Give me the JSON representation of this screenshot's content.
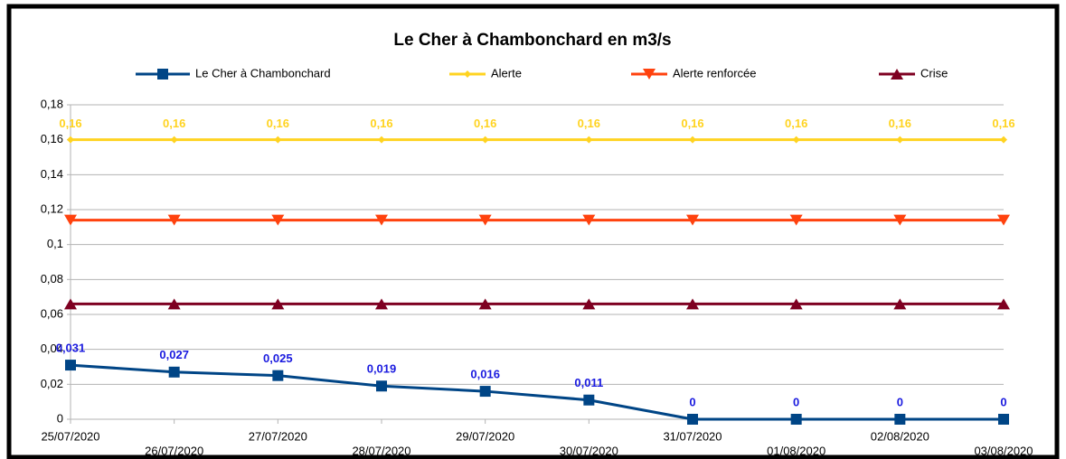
{
  "chart_data": {
    "type": "line",
    "title": "Le Cher à Chambonchard en m3/s",
    "categories": [
      "25/07/2020",
      "26/07/2020",
      "27/07/2020",
      "28/07/2020",
      "29/07/2020",
      "30/07/2020",
      "31/07/2020",
      "01/08/2020",
      "02/08/2020",
      "03/08/2020"
    ],
    "series": [
      {
        "name": "Le Cher à Chambonchard",
        "color": "#004586",
        "marker": "square",
        "values": [
          0.031,
          0.027,
          0.025,
          0.019,
          0.016,
          0.011,
          0,
          0,
          0,
          0
        ],
        "value_labels": [
          "0,031",
          "0,027",
          "0,025",
          "0,019",
          "0,016",
          "0,011",
          "0",
          "0",
          "0",
          "0"
        ]
      },
      {
        "name": "Alerte",
        "color": "#ffd320",
        "marker": "diamond",
        "values": [
          0.16,
          0.16,
          0.16,
          0.16,
          0.16,
          0.16,
          0.16,
          0.16,
          0.16,
          0.16
        ],
        "value_labels": [
          "0,16",
          "0,16",
          "0,16",
          "0,16",
          "0,16",
          "0,16",
          "0,16",
          "0,16",
          "0,16",
          "0,16"
        ]
      },
      {
        "name": "Alerte renforcée",
        "color": "#ff420e",
        "marker": "triangle-down",
        "values": [
          0.114,
          0.114,
          0.114,
          0.114,
          0.114,
          0.114,
          0.114,
          0.114,
          0.114,
          0.114
        ]
      },
      {
        "name": "Crise",
        "color": "#7e0021",
        "marker": "triangle-up",
        "values": [
          0.066,
          0.066,
          0.066,
          0.066,
          0.066,
          0.066,
          0.066,
          0.066,
          0.066,
          0.066
        ]
      }
    ],
    "ylim": [
      0,
      0.18
    ],
    "yticks": [
      0,
      {
        "value": 0.02,
        "label": "0,02"
      },
      {
        "value": 0.04,
        "label": "0,04"
      },
      {
        "value": 0.06,
        "label": "0,06"
      },
      {
        "value": 0.08,
        "label": "0,08"
      },
      {
        "value": 0.1,
        "label": "0,1"
      },
      {
        "value": 0.12,
        "label": "0,12"
      },
      {
        "value": 0.14,
        "label": "0,14"
      },
      {
        "value": 0.16,
        "label": "0,16"
      },
      {
        "value": 0.18,
        "label": "0,18"
      }
    ],
    "grid": true,
    "legend": "top"
  }
}
